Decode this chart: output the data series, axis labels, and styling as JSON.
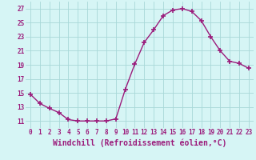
{
  "x": [
    0,
    1,
    2,
    3,
    4,
    5,
    6,
    7,
    8,
    9,
    10,
    11,
    12,
    13,
    14,
    15,
    16,
    17,
    18,
    19,
    20,
    21,
    22,
    23
  ],
  "y": [
    14.8,
    13.5,
    12.8,
    12.2,
    11.2,
    11.0,
    11.0,
    11.0,
    11.0,
    11.3,
    15.5,
    19.1,
    22.2,
    24.0,
    26.0,
    26.8,
    27.0,
    26.6,
    25.3,
    23.0,
    21.0,
    19.5,
    19.2,
    18.5
  ],
  "line_color": "#9B1B7B",
  "marker": "+",
  "marker_size": 4,
  "marker_linewidth": 1.2,
  "background_color": "#d6f5f5",
  "grid_color": "#a8d8d8",
  "xlabel": "Windchill (Refroidissement éolien,°C)",
  "xlabel_color": "#9B1B7B",
  "xlim": [
    -0.5,
    23.5
  ],
  "ylim": [
    10.0,
    28.0
  ],
  "yticks": [
    11,
    13,
    15,
    17,
    19,
    21,
    23,
    25,
    27
  ],
  "xticks": [
    0,
    1,
    2,
    3,
    4,
    5,
    6,
    7,
    8,
    9,
    10,
    11,
    12,
    13,
    14,
    15,
    16,
    17,
    18,
    19,
    20,
    21,
    22,
    23
  ],
  "tick_color": "#9B1B7B",
  "tick_fontsize": 5.5,
  "xlabel_fontsize": 7.0,
  "line_width": 1.0
}
